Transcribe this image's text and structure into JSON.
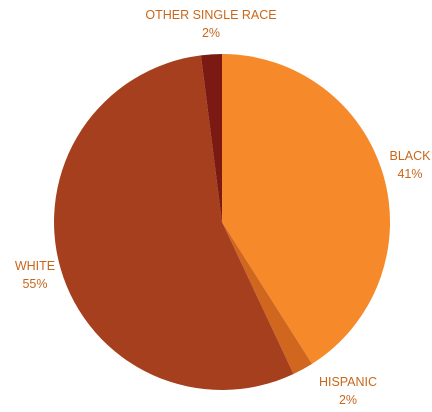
{
  "chart_data": {
    "type": "pie",
    "title": "",
    "start_angle_deg": 0,
    "direction": "clockwise",
    "slices": [
      {
        "label": "BLACK",
        "value_label": "41%",
        "value": 41,
        "color": "#F6892A"
      },
      {
        "label": "HISPANIC",
        "value_label": "2%",
        "value": 2,
        "color": "#D1661E"
      },
      {
        "label": "WHITE",
        "value_label": "55%",
        "value": 55,
        "color": "#A63F1D"
      },
      {
        "label": "OTHER SINGLE RACE",
        "value_label": "2%",
        "value": 2,
        "color": "#7A1A13"
      }
    ],
    "label_color": "#C8671C",
    "legend": "none"
  }
}
